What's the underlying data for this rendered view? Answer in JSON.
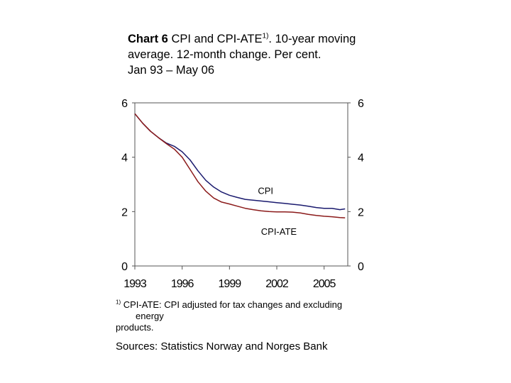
{
  "chart_data": {
    "type": "line",
    "title_bold": "Chart 6",
    "title_rest_a": " CPI and CPI-ATE",
    "title_sup": "1)",
    "title_rest_b": ". 10-year moving average. 12-month change. Per cent.",
    "subtitle": "Jan 93 – May 06",
    "ylim": [
      0,
      6
    ],
    "xlim": [
      1993.0,
      2006.5
    ],
    "y_ticks_left": [
      "0",
      "2",
      "4",
      "6"
    ],
    "y_ticks_right": [
      "0",
      "2",
      "4",
      "6"
    ],
    "x_ticks": [
      "1993",
      "1996",
      "1999",
      "2002",
      "2005"
    ],
    "series": [
      {
        "name": "CPI",
        "color": "#1a1a6e",
        "x": [
          1993.0,
          1993.5,
          1994.0,
          1994.5,
          1995.0,
          1995.5,
          1996.0,
          1996.5,
          1997.0,
          1997.5,
          1998.0,
          1998.5,
          1999.0,
          1999.5,
          2000.0,
          2000.5,
          2001.0,
          2001.5,
          2002.0,
          2002.5,
          2003.0,
          2003.5,
          2004.0,
          2004.5,
          2005.0,
          2005.5,
          2006.0,
          2006.33
        ],
        "values": [
          5.6,
          5.25,
          4.95,
          4.72,
          4.52,
          4.4,
          4.2,
          3.9,
          3.5,
          3.15,
          2.9,
          2.72,
          2.6,
          2.52,
          2.45,
          2.42,
          2.39,
          2.36,
          2.33,
          2.3,
          2.27,
          2.24,
          2.2,
          2.15,
          2.12,
          2.12,
          2.07,
          2.1
        ]
      },
      {
        "name": "CPI-ATE",
        "color": "#8b1a1a",
        "x": [
          1993.0,
          1993.5,
          1994.0,
          1994.5,
          1995.0,
          1995.5,
          1996.0,
          1996.5,
          1997.0,
          1997.5,
          1998.0,
          1998.5,
          1999.0,
          1999.5,
          2000.0,
          2000.5,
          2001.0,
          2001.5,
          2002.0,
          2002.5,
          2003.0,
          2003.5,
          2004.0,
          2004.5,
          2005.0,
          2005.5,
          2006.0,
          2006.33
        ],
        "values": [
          5.6,
          5.25,
          4.95,
          4.72,
          4.5,
          4.3,
          4.0,
          3.55,
          3.1,
          2.75,
          2.5,
          2.35,
          2.28,
          2.2,
          2.12,
          2.07,
          2.03,
          2.0,
          1.99,
          1.99,
          1.98,
          1.95,
          1.9,
          1.86,
          1.83,
          1.81,
          1.78,
          1.77
        ]
      }
    ],
    "annotations": [
      {
        "text": "CPI",
        "x": 2000.8,
        "y": 2.65
      },
      {
        "text": "CPI-ATE",
        "x": 2001.0,
        "y": 1.15
      }
    ],
    "footnote_marker": "1)",
    "footnote_a": " CPI-ATE: CPI adjusted for tax changes and excluding",
    "footnote_b": "energy",
    "footnote_c": "products.",
    "sources": "Sources: Statistics Norway and Norges Bank"
  }
}
